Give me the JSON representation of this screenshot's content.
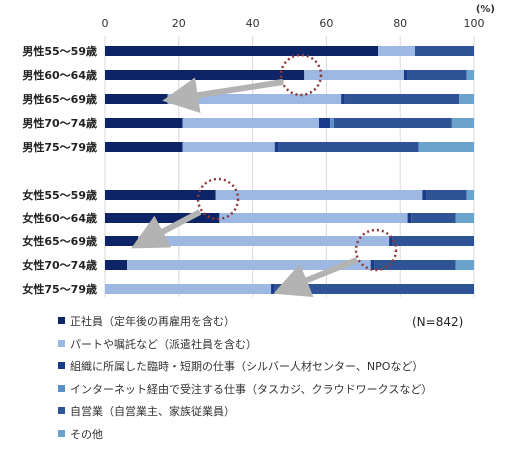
{
  "chart_data": {
    "type": "bar",
    "stacked": true,
    "orientation": "horizontal",
    "unit": "(%)",
    "xlim": [
      0,
      100
    ],
    "xticks": [
      0,
      20,
      40,
      60,
      80,
      100
    ],
    "categories": [
      "男性55～59歳",
      "男性60～64歳",
      "男性65～69歳",
      "男性70～74歳",
      "男性75～79歳",
      "女性55～59歳",
      "女性60～64歳",
      "女性65～69歳",
      "女性70～74歳",
      "女性75～79歳"
    ],
    "series": [
      {
        "name": "正社員（定年後の再雇用を含む）",
        "color": "#0d2466",
        "values": [
          74,
          54,
          17,
          21,
          21,
          30,
          31,
          9,
          6,
          0
        ]
      },
      {
        "name": "パートや嘱託など（派遣社員を含む）",
        "color": "#9db8e3",
        "values": [
          10,
          27,
          47,
          37,
          25,
          56,
          51,
          68,
          66,
          45
        ]
      },
      {
        "name": "組織に所属した臨時・短期の仕事（シルバー人材センター、NPOなど）",
        "color": "#1b3a8a",
        "values": [
          0,
          1,
          1,
          3,
          1,
          1,
          1,
          1,
          1,
          1
        ]
      },
      {
        "name": "インターネット経由で受注する仕事（タスカジ、クラウドワークスなど）",
        "color": "#5b8fc7",
        "values": [
          0,
          0,
          0,
          1,
          0,
          0,
          0,
          0,
          0,
          0
        ]
      },
      {
        "name": "自営業（自営業主、家族従業員）",
        "color": "#2e5495",
        "values": [
          16,
          16,
          31,
          32,
          38,
          11,
          12,
          22,
          22,
          54
        ]
      },
      {
        "name": "その他",
        "color": "#6aa3cc",
        "values": [
          0,
          2,
          4,
          6,
          15,
          2,
          5,
          0,
          5,
          0
        ]
      }
    ],
    "legend_position": "bottom",
    "grid": true,
    "annotation": "(N=842)"
  }
}
